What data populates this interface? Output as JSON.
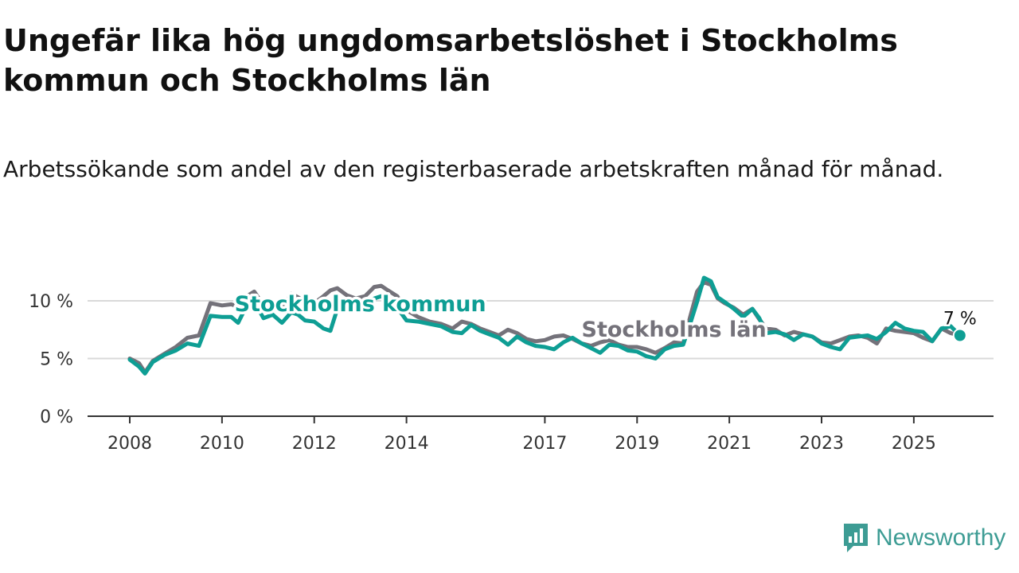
{
  "title": "Ungefär lika hög ungdomsarbetslöshet i Stockholms kommun och Stockholms län",
  "subtitle": "Arbetssökande som andel av den registerbaserade arbetskraften månad för månad.",
  "brand": {
    "name": "Newsworthy",
    "icon": "newsworthy-logo-icon"
  },
  "colors": {
    "kommun": "#0e9e94",
    "lan": "#74727a",
    "grid": "#d9d9d9",
    "axis": "#333333",
    "brand": "#3d9c94"
  },
  "chart_data": {
    "type": "line",
    "title": "Ungefär lika hög ungdomsarbetslöshet i Stockholms kommun och Stockholms län",
    "xlabel": "",
    "ylabel": "",
    "ylim": [
      0,
      12.5
    ],
    "xlim": [
      2008,
      2026.8
    ],
    "grid": true,
    "yticks": [
      {
        "value": 0,
        "label": "0 %"
      },
      {
        "value": 5,
        "label": "5 %"
      },
      {
        "value": 10,
        "label": "10 %"
      }
    ],
    "xticks": [
      {
        "value": 2008,
        "label": "2008"
      },
      {
        "value": 2010,
        "label": "2010"
      },
      {
        "value": 2012,
        "label": "2012"
      },
      {
        "value": 2014,
        "label": "2014"
      },
      {
        "value": 2017,
        "label": "2017"
      },
      {
        "value": 2019,
        "label": "2019"
      },
      {
        "value": 2021,
        "label": "2021"
      },
      {
        "value": 2023,
        "label": "2023"
      },
      {
        "value": 2025,
        "label": "2025"
      }
    ],
    "series": [
      {
        "name": "Stockholms län",
        "label": "Stockholms län",
        "label_anchor": [
          2019.8,
          6.9
        ],
        "x": [
          2008.0,
          2008.2,
          2008.33,
          2008.5,
          2008.75,
          2009.0,
          2009.25,
          2009.5,
          2009.75,
          2010.0,
          2010.2,
          2010.35,
          2010.5,
          2010.7,
          2010.9,
          2011.1,
          2011.3,
          2011.5,
          2011.65,
          2011.8,
          2012.0,
          2012.2,
          2012.35,
          2012.5,
          2012.7,
          2012.9,
          2013.1,
          2013.3,
          2013.45,
          2013.6,
          2013.8,
          2014.0,
          2014.25,
          2014.5,
          2014.75,
          2015.0,
          2015.2,
          2015.4,
          2015.6,
          2015.8,
          2016.0,
          2016.2,
          2016.4,
          2016.6,
          2016.8,
          2017.0,
          2017.2,
          2017.4,
          2017.6,
          2017.8,
          2018.0,
          2018.2,
          2018.4,
          2018.6,
          2018.8,
          2019.0,
          2019.2,
          2019.4,
          2019.6,
          2019.8,
          2020.0,
          2020.15,
          2020.3,
          2020.45,
          2020.6,
          2020.75,
          2020.9,
          2021.1,
          2021.3,
          2021.5,
          2021.65,
          2021.8,
          2022.0,
          2022.2,
          2022.4,
          2022.6,
          2022.8,
          2023.0,
          2023.2,
          2023.4,
          2023.6,
          2023.8,
          2024.0,
          2024.2,
          2024.4,
          2024.6,
          2024.8,
          2025.0,
          2025.2,
          2025.4,
          2025.6,
          2025.8,
          2026.0
        ],
        "values": [
          5.0,
          4.6,
          3.8,
          4.8,
          5.4,
          6.0,
          6.8,
          7.0,
          9.8,
          9.6,
          9.7,
          9.5,
          10.3,
          10.8,
          9.6,
          9.9,
          9.4,
          10.6,
          10.3,
          9.9,
          9.8,
          10.4,
          10.9,
          11.1,
          10.5,
          10.2,
          10.4,
          11.2,
          11.3,
          10.9,
          10.4,
          9.2,
          8.6,
          8.2,
          8.0,
          7.6,
          8.2,
          8.0,
          7.6,
          7.3,
          7.0,
          7.5,
          7.2,
          6.7,
          6.5,
          6.6,
          6.9,
          7.0,
          6.7,
          6.3,
          6.1,
          6.4,
          6.6,
          6.2,
          6.0,
          6.0,
          5.8,
          5.5,
          5.9,
          6.4,
          6.3,
          8.6,
          10.8,
          11.6,
          11.4,
          10.2,
          9.8,
          9.4,
          8.8,
          9.3,
          8.4,
          7.6,
          7.5,
          7.0,
          7.3,
          7.1,
          6.9,
          6.4,
          6.3,
          6.6,
          6.9,
          7.0,
          6.8,
          6.3,
          7.6,
          7.4,
          7.3,
          7.2,
          6.8,
          6.5,
          7.6,
          7.2,
          7.0
        ]
      },
      {
        "name": "Stockholms kommun",
        "label": "Stockholms kommun",
        "label_anchor": [
          2013.0,
          9.1
        ],
        "x": [
          2008.0,
          2008.2,
          2008.33,
          2008.5,
          2008.75,
          2009.0,
          2009.25,
          2009.5,
          2009.75,
          2010.0,
          2010.2,
          2010.35,
          2010.5,
          2010.7,
          2010.9,
          2011.1,
          2011.3,
          2011.5,
          2011.65,
          2011.8,
          2012.0,
          2012.2,
          2012.35,
          2012.5,
          2012.7,
          2012.9,
          2013.1,
          2013.3,
          2013.45,
          2013.6,
          2013.8,
          2014.0,
          2014.25,
          2014.5,
          2014.75,
          2015.0,
          2015.2,
          2015.4,
          2015.6,
          2015.8,
          2016.0,
          2016.2,
          2016.4,
          2016.6,
          2016.8,
          2017.0,
          2017.2,
          2017.4,
          2017.6,
          2017.8,
          2018.0,
          2018.2,
          2018.4,
          2018.6,
          2018.8,
          2019.0,
          2019.2,
          2019.4,
          2019.6,
          2019.8,
          2020.0,
          2020.15,
          2020.3,
          2020.45,
          2020.6,
          2020.75,
          2020.9,
          2021.1,
          2021.3,
          2021.5,
          2021.65,
          2021.8,
          2022.0,
          2022.2,
          2022.4,
          2022.6,
          2022.8,
          2023.0,
          2023.2,
          2023.4,
          2023.6,
          2023.8,
          2024.0,
          2024.2,
          2024.4,
          2024.6,
          2024.8,
          2025.0,
          2025.2,
          2025.4,
          2025.6,
          2025.8,
          2026.0
        ],
        "values": [
          4.9,
          4.3,
          3.7,
          4.7,
          5.3,
          5.7,
          6.3,
          6.1,
          8.7,
          8.6,
          8.6,
          8.1,
          9.3,
          9.9,
          8.5,
          8.8,
          8.1,
          9.0,
          8.8,
          8.3,
          8.2,
          7.6,
          7.4,
          9.3,
          9.6,
          9.3,
          9.2,
          10.2,
          10.4,
          10.0,
          9.4,
          8.3,
          8.2,
          8.0,
          7.8,
          7.3,
          7.2,
          7.9,
          7.4,
          7.1,
          6.8,
          6.2,
          6.9,
          6.4,
          6.1,
          6.0,
          5.8,
          6.4,
          6.8,
          6.3,
          5.9,
          5.5,
          6.2,
          6.1,
          5.7,
          5.6,
          5.2,
          5.0,
          5.8,
          6.1,
          6.2,
          8.0,
          9.9,
          12.0,
          11.7,
          10.3,
          9.9,
          9.3,
          8.6,
          9.3,
          8.5,
          7.2,
          7.3,
          7.1,
          6.6,
          7.1,
          6.9,
          6.3,
          6.0,
          5.8,
          6.8,
          6.9,
          7.0,
          6.7,
          7.3,
          8.1,
          7.6,
          7.4,
          7.3,
          6.5,
          7.6,
          7.8,
          7.0
        ]
      }
    ],
    "annotations": [
      {
        "series": "Stockholms kommun",
        "x": 2026.0,
        "value": 7,
        "label": "7 %"
      }
    ]
  }
}
